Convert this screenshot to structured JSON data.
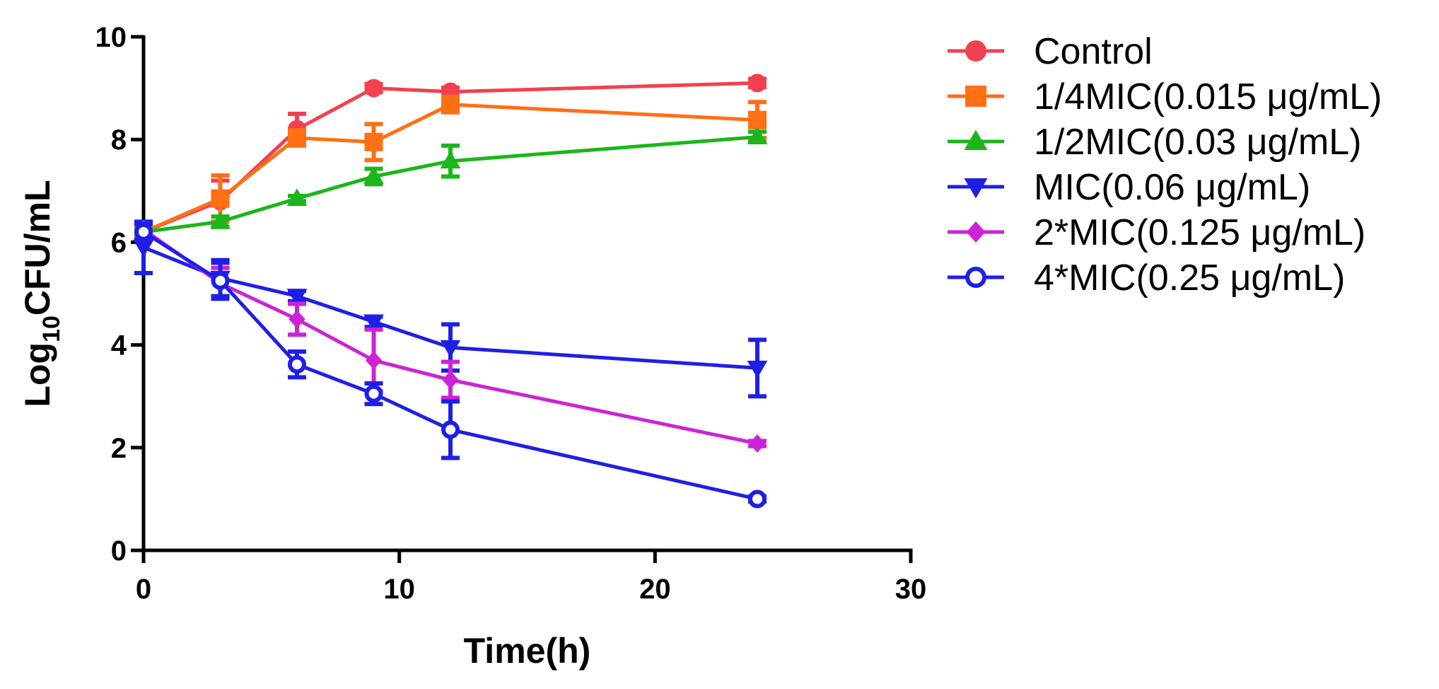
{
  "chart_data": {
    "type": "line",
    "title": "",
    "xlabel": "Time(h)",
    "ylabel_base": "Log",
    "ylabel_subscript": "10",
    "ylabel_rest": "CFU/mL",
    "xlim": [
      0,
      30
    ],
    "ylim": [
      0,
      10
    ],
    "xticks": [
      0,
      10,
      20,
      30
    ],
    "yticks": [
      0,
      2,
      4,
      6,
      8,
      10
    ],
    "grid": false,
    "legend_position": "right",
    "x": [
      0,
      3,
      6,
      9,
      12,
      24
    ],
    "series": [
      {
        "name": "Control",
        "color": "#f24050",
        "marker": "circle",
        "values": [
          6.2,
          6.8,
          8.2,
          9.0,
          8.93,
          9.1
        ],
        "errors": [
          0.1,
          0.4,
          0.3,
          0.08,
          0.08,
          0.08
        ]
      },
      {
        "name": "1/4MIC(0.015 μg/mL)",
        "color": "#ff6f14",
        "marker": "square",
        "values": [
          6.2,
          6.85,
          8.03,
          7.95,
          8.68,
          8.38
        ],
        "errors": [
          0.1,
          0.45,
          0.15,
          0.35,
          0.15,
          0.35
        ]
      },
      {
        "name": "1/2MIC(0.03 μg/mL)",
        "color": "#1ab61a",
        "marker": "triangle-up",
        "values": [
          6.2,
          6.4,
          6.85,
          7.28,
          7.58,
          8.05
        ],
        "errors": [
          0.05,
          0.1,
          0.05,
          0.15,
          0.3,
          0.1
        ]
      },
      {
        "name": "MIC(0.06 μg/mL)",
        "color": "#1e1fe6",
        "marker": "triangle-down",
        "values": [
          5.9,
          5.3,
          4.95,
          4.45,
          3.95,
          3.55
        ],
        "errors": [
          0.5,
          0.35,
          0.1,
          0.1,
          0.45,
          0.55
        ]
      },
      {
        "name": "2*MIC(0.125 μg/mL)",
        "color": "#cc23d6",
        "marker": "diamond",
        "values": [
          6.25,
          5.2,
          4.5,
          3.7,
          3.32,
          2.08
        ],
        "errors": [
          0.1,
          0.3,
          0.3,
          0.6,
          0.35,
          0.05
        ]
      },
      {
        "name": "4*MIC(0.25 μg/mL)",
        "color": "#1e1fe6",
        "marker": "circle-open",
        "values": [
          6.2,
          5.25,
          3.62,
          3.05,
          2.35,
          1.0
        ],
        "errors": [
          0.15,
          0.35,
          0.25,
          0.2,
          0.55,
          0.05
        ]
      }
    ]
  }
}
